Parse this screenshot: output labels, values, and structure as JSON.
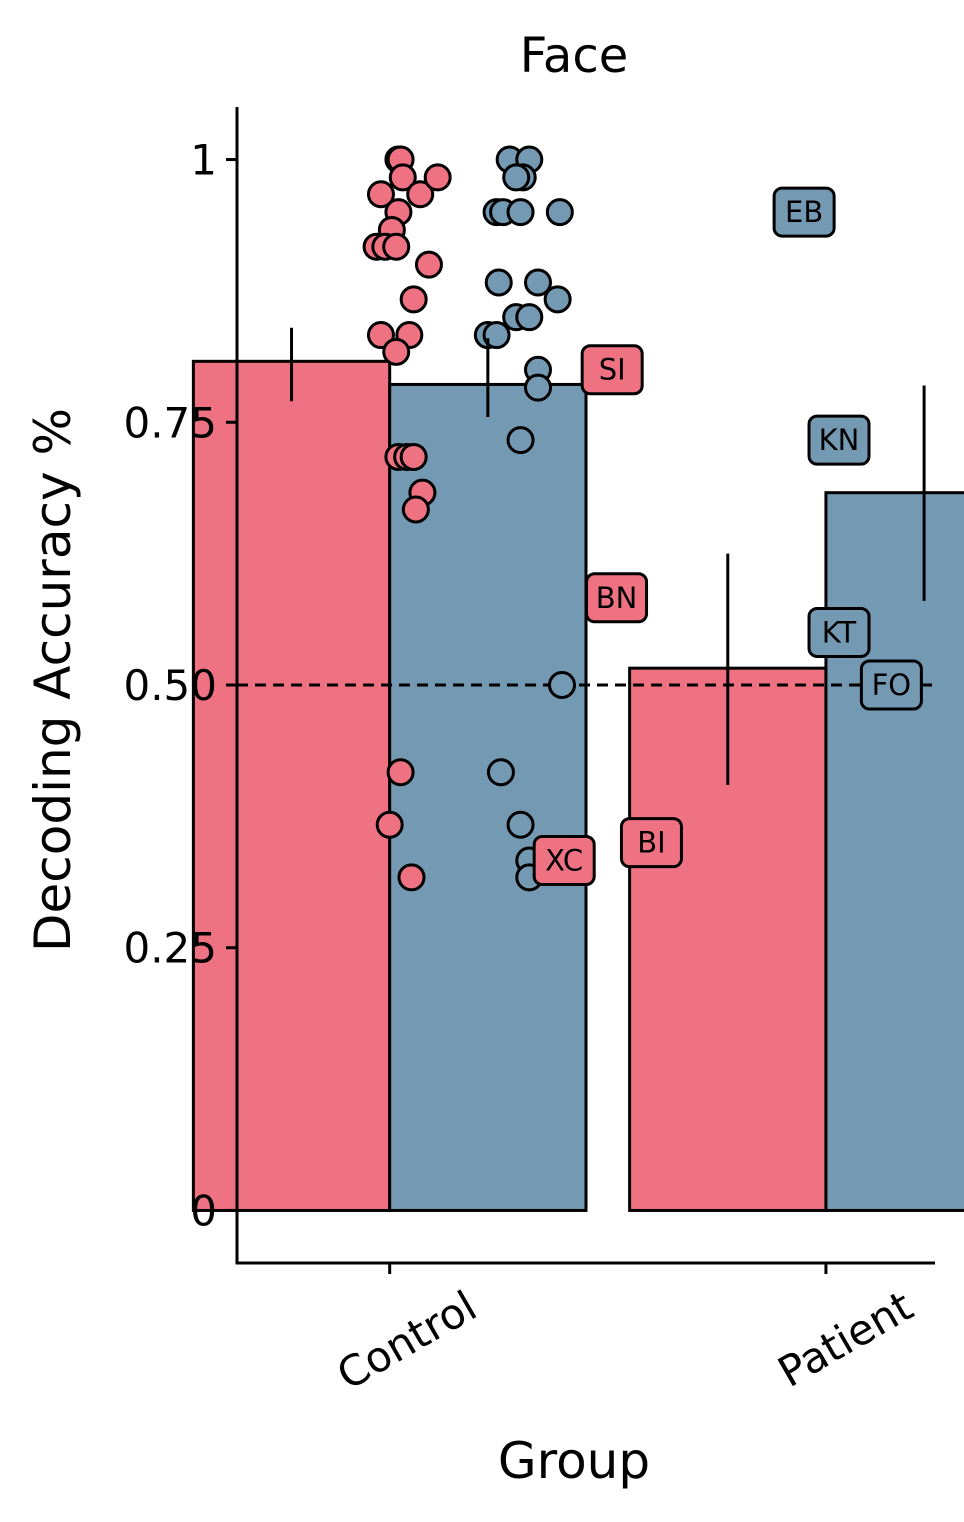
{
  "chart_data": {
    "type": "bar",
    "title": "Face",
    "xlabel": "Group",
    "ylabel": "Decoding Accuracy %",
    "categories": [
      "Control",
      "Patient"
    ],
    "ylim": [
      -0.05,
      1.05
    ],
    "yticks": [
      0,
      0.25,
      0.5,
      0.75,
      1
    ],
    "ytick_labels": [
      "0",
      "0.25",
      "0.50",
      "0.75",
      "1"
    ],
    "reference_line": 0.5,
    "grid": false,
    "legend": "none",
    "colors": {
      "red": "#EF7282",
      "blue": "#7499B2"
    },
    "series": [
      {
        "color": "#EF7282",
        "values": [
          0.808,
          0.516
        ],
        "error_bars": [
          [
            0.77,
            0.84
          ],
          [
            0.405,
            0.625
          ]
        ]
      },
      {
        "color": "#7499B2",
        "values": [
          0.786,
          0.683
        ],
        "error_bars": [
          [
            0.755,
            0.83
          ],
          [
            0.58,
            0.785
          ]
        ]
      }
    ],
    "control_points": {
      "red": [
        {
          "x": 1.04,
          "y": 1.0
        },
        {
          "x": 1.05,
          "y": 1.0
        },
        {
          "x": 1.06,
          "y": 0.983
        },
        {
          "x": 0.96,
          "y": 0.967
        },
        {
          "x": 1.14,
          "y": 0.967
        },
        {
          "x": 1.22,
          "y": 0.983
        },
        {
          "x": 1.04,
          "y": 0.95
        },
        {
          "x": 1.01,
          "y": 0.933
        },
        {
          "x": 0.94,
          "y": 0.917
        },
        {
          "x": 0.98,
          "y": 0.917
        },
        {
          "x": 1.03,
          "y": 0.917
        },
        {
          "x": 1.18,
          "y": 0.9
        },
        {
          "x": 1.11,
          "y": 0.867
        },
        {
          "x": 0.96,
          "y": 0.833
        },
        {
          "x": 1.09,
          "y": 0.833
        },
        {
          "x": 1.03,
          "y": 0.817
        },
        {
          "x": 1.04,
          "y": 0.717
        },
        {
          "x": 1.08,
          "y": 0.717
        },
        {
          "x": 1.11,
          "y": 0.717
        },
        {
          "x": 1.15,
          "y": 0.683
        },
        {
          "x": 1.12,
          "y": 0.667
        },
        {
          "x": 1.05,
          "y": 0.417
        },
        {
          "x": 1.0,
          "y": 0.367
        },
        {
          "x": 1.1,
          "y": 0.317
        }
      ],
      "blue": [
        {
          "x": 1.55,
          "y": 1.0
        },
        {
          "x": 1.64,
          "y": 1.0
        },
        {
          "x": 1.61,
          "y": 0.983
        },
        {
          "x": 1.58,
          "y": 0.983
        },
        {
          "x": 1.49,
          "y": 0.95
        },
        {
          "x": 1.52,
          "y": 0.95
        },
        {
          "x": 1.6,
          "y": 0.95
        },
        {
          "x": 1.78,
          "y": 0.95
        },
        {
          "x": 1.5,
          "y": 0.883
        },
        {
          "x": 1.68,
          "y": 0.883
        },
        {
          "x": 1.77,
          "y": 0.867
        },
        {
          "x": 1.58,
          "y": 0.85
        },
        {
          "x": 1.64,
          "y": 0.85
        },
        {
          "x": 1.45,
          "y": 0.833
        },
        {
          "x": 1.49,
          "y": 0.833
        },
        {
          "x": 1.68,
          "y": 0.8
        },
        {
          "x": 1.68,
          "y": 0.783
        },
        {
          "x": 1.6,
          "y": 0.733
        },
        {
          "x": 1.79,
          "y": 0.5
        },
        {
          "x": 1.51,
          "y": 0.417
        },
        {
          "x": 1.6,
          "y": 0.367
        },
        {
          "x": 1.64,
          "y": 0.333
        },
        {
          "x": 1.64,
          "y": 0.317
        }
      ]
    },
    "patient_labels": [
      {
        "text": "SI",
        "x": 2.02,
        "y": 0.8,
        "series": "red"
      },
      {
        "text": "BN",
        "x": 2.04,
        "y": 0.583,
        "series": "red"
      },
      {
        "text": "BI",
        "x": 2.2,
        "y": 0.35,
        "series": "red"
      },
      {
        "text": "XC",
        "x": 1.8,
        "y": 0.333,
        "series": "red"
      },
      {
        "text": "EB",
        "x": 2.9,
        "y": 0.95,
        "series": "blue"
      },
      {
        "text": "KN",
        "x": 3.06,
        "y": 0.733,
        "series": "blue"
      },
      {
        "text": "KT",
        "x": 3.06,
        "y": 0.55,
        "series": "blue"
      },
      {
        "text": "FO",
        "x": 3.3,
        "y": 0.5,
        "series": "blue"
      }
    ]
  }
}
